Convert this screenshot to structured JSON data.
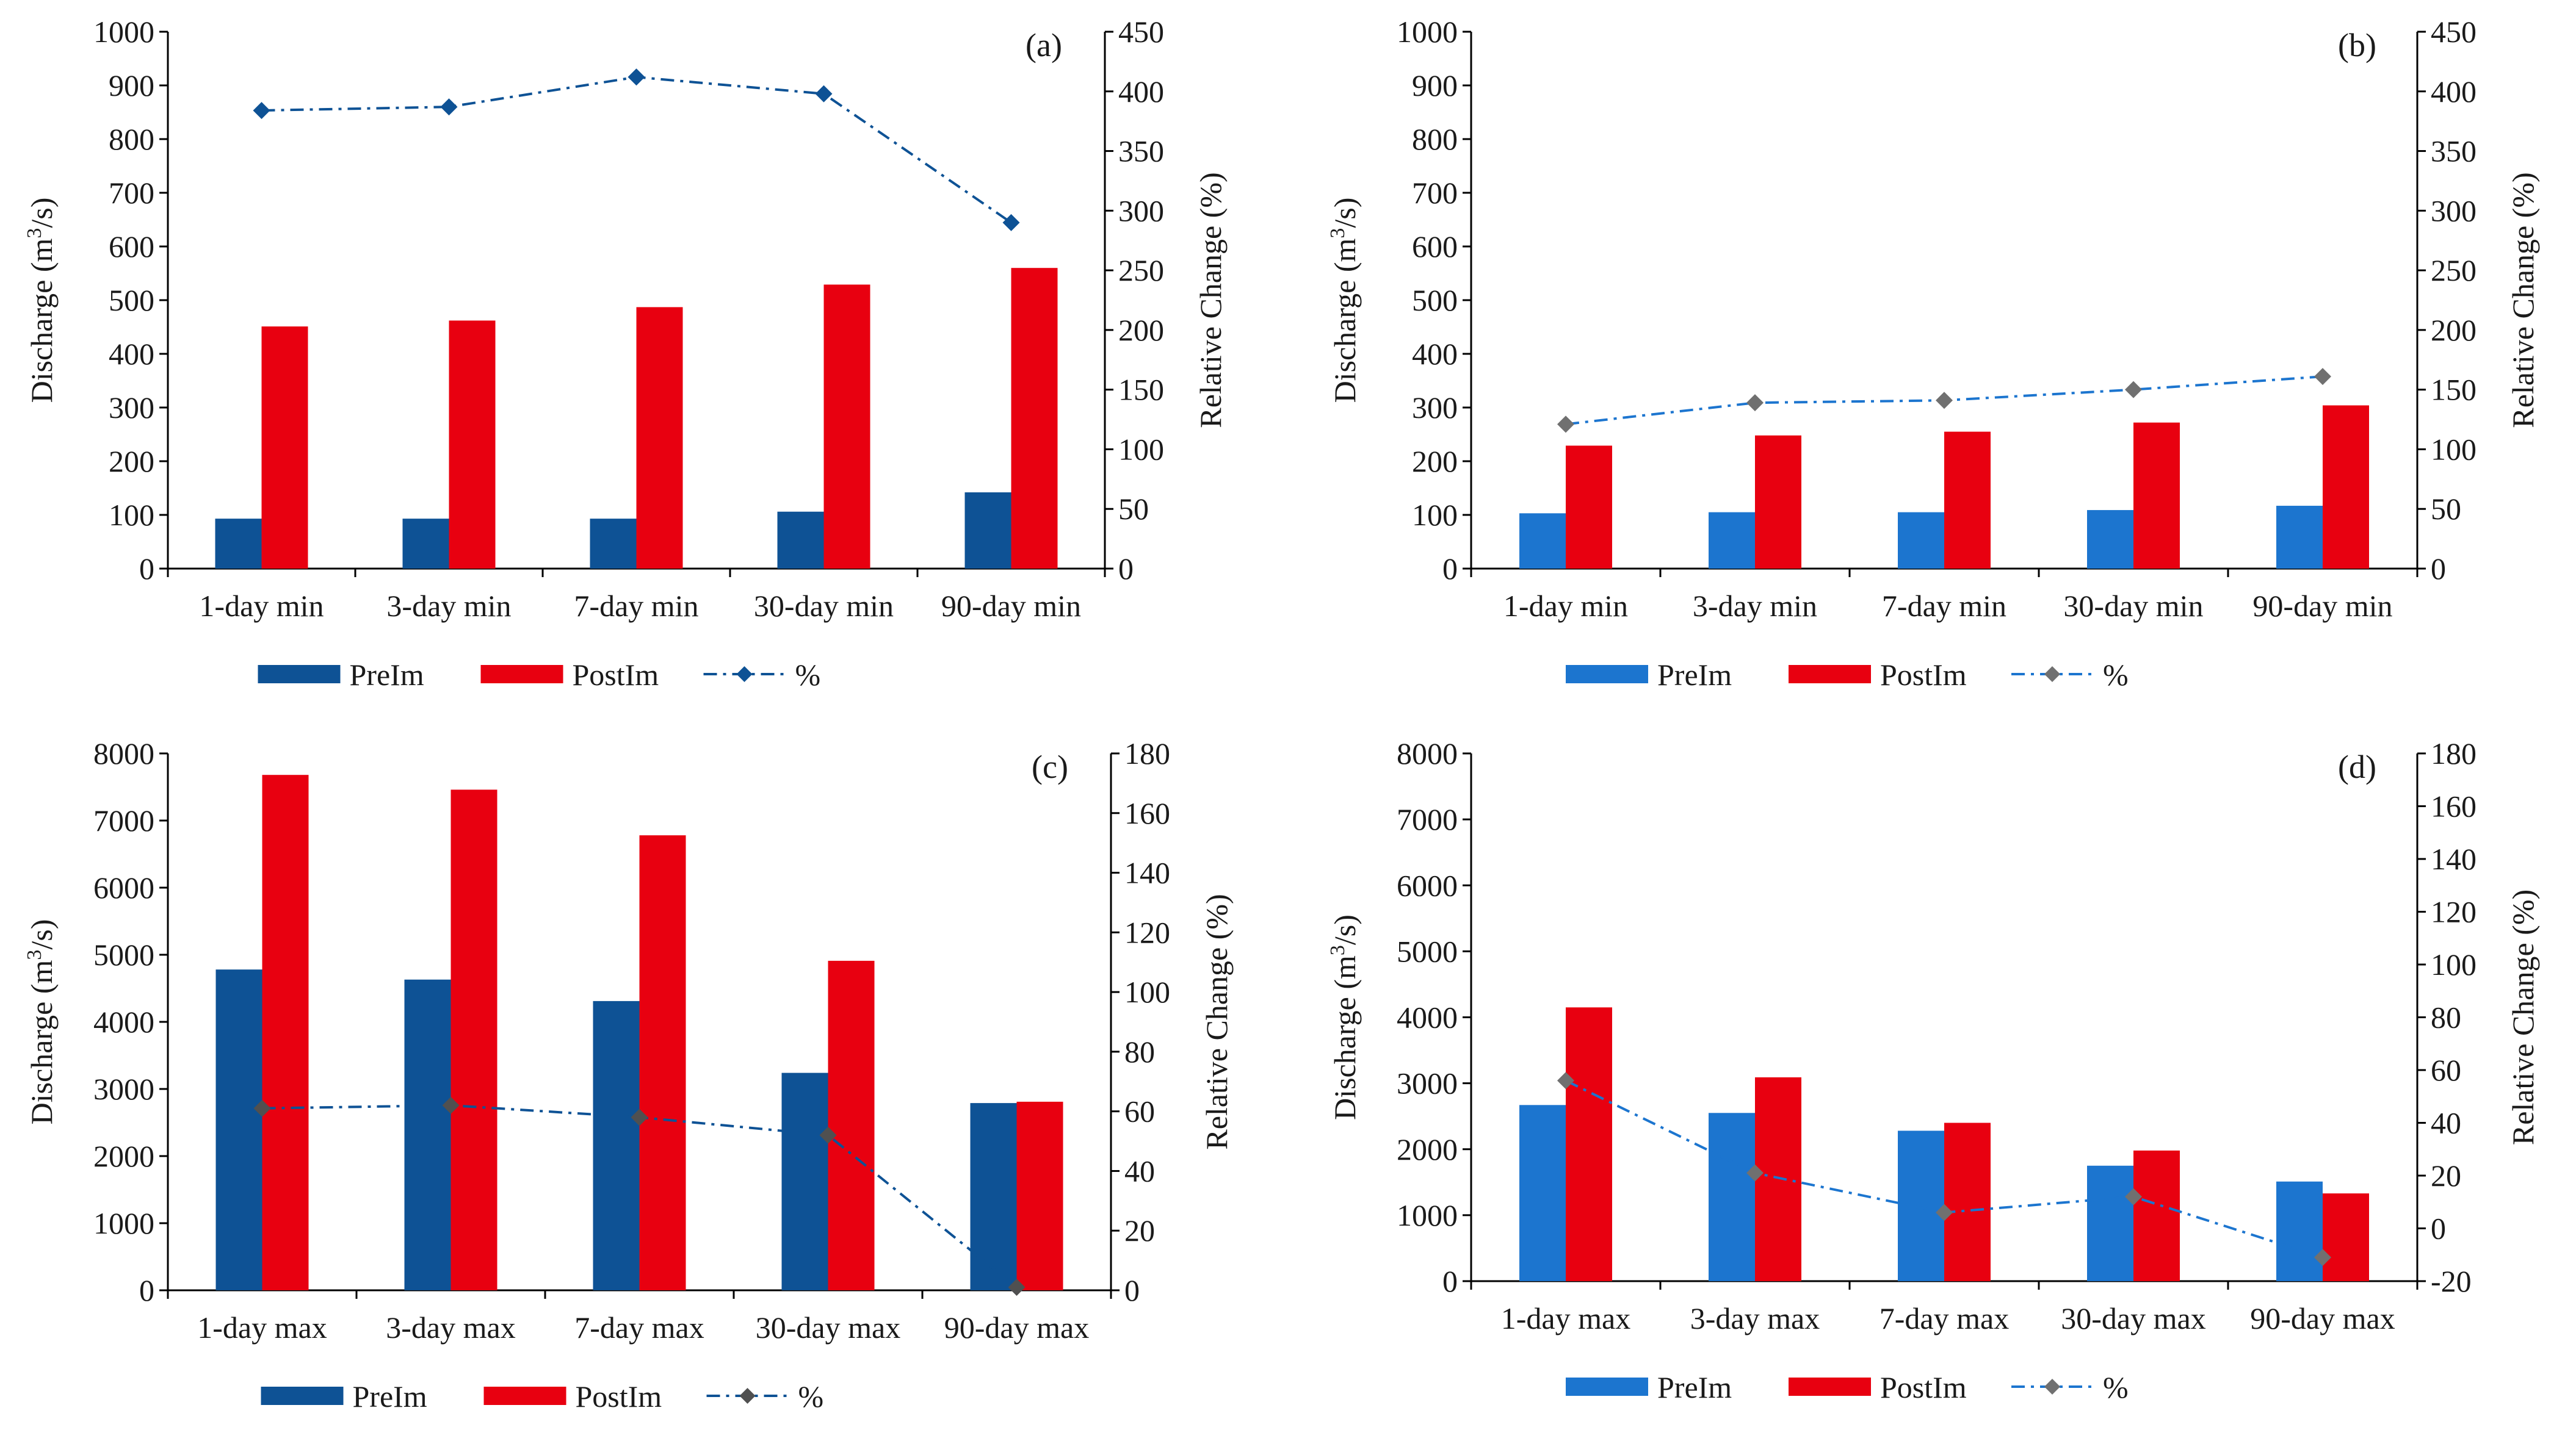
{
  "chart_data": [
    {
      "type": "bar",
      "panel_label": "(a)",
      "categories": [
        "1-day min",
        "3-day min",
        "7-day min",
        "30-day min",
        "90-day min"
      ],
      "series": [
        {
          "name": "PreIm",
          "kind": "bar",
          "axis": "left",
          "color": "#0e5295",
          "values": [
            93,
            93,
            93,
            106,
            142
          ]
        },
        {
          "name": "PostIm",
          "kind": "bar",
          "axis": "left",
          "color": "#e80010",
          "values": [
            451,
            462,
            487,
            529,
            560
          ]
        },
        {
          "name": "%",
          "kind": "line",
          "axis": "right",
          "color": "#0e5295",
          "marker_color": "#0e5295",
          "values": [
            384,
            387,
            412,
            398,
            290
          ]
        }
      ],
      "ylabel_prefix": "Discharge (m",
      "ylabel_sup": "3",
      "ylabel_suffix": "/s)",
      "y2label": "Relative Change (%)",
      "ylim": [
        0,
        1000
      ],
      "yticks": [
        0,
        100,
        200,
        300,
        400,
        500,
        600,
        700,
        800,
        900,
        1000
      ],
      "y2lim": [
        0,
        450
      ],
      "y2ticks": [
        0,
        50,
        100,
        150,
        200,
        250,
        300,
        350,
        400,
        450
      ],
      "legend": "bottom"
    },
    {
      "type": "bar",
      "panel_label": "(b)",
      "categories": [
        "1-day min",
        "3-day min",
        "7-day min",
        "30-day min",
        "90-day min"
      ],
      "series": [
        {
          "name": "PreIm",
          "kind": "bar",
          "axis": "left",
          "color": "#1c75cf",
          "values": [
            103,
            105,
            105,
            109,
            117
          ]
        },
        {
          "name": "PostIm",
          "kind": "bar",
          "axis": "left",
          "color": "#e80010",
          "values": [
            229,
            248,
            255,
            272,
            304
          ]
        },
        {
          "name": "%",
          "kind": "line",
          "axis": "right",
          "color": "#1c75cf",
          "marker_color": "#707070",
          "values": [
            121,
            139,
            141,
            150,
            161
          ]
        }
      ],
      "ylabel_prefix": "Discharge (m",
      "ylabel_sup": "3",
      "ylabel_suffix": "/s)",
      "y2label": "Relative Change (%)",
      "ylim": [
        0,
        1000
      ],
      "yticks": [
        0,
        100,
        200,
        300,
        400,
        500,
        600,
        700,
        800,
        900,
        1000
      ],
      "y2lim": [
        0,
        450
      ],
      "y2ticks": [
        0,
        50,
        100,
        150,
        200,
        250,
        300,
        350,
        400,
        450
      ],
      "legend": "bottom"
    },
    {
      "type": "bar",
      "panel_label": "(c)",
      "categories": [
        "1-day max",
        "3-day max",
        "7-day max",
        "30-day max",
        "90-day max"
      ],
      "series": [
        {
          "name": "PreIm",
          "kind": "bar",
          "axis": "left",
          "color": "#0e5295",
          "values": [
            4780,
            4630,
            4310,
            3240,
            2790
          ]
        },
        {
          "name": "PostIm",
          "kind": "bar",
          "axis": "left",
          "color": "#e80010",
          "values": [
            7680,
            7460,
            6780,
            4910,
            2810
          ]
        },
        {
          "name": "%",
          "kind": "line",
          "axis": "right",
          "color": "#0e5295",
          "marker_color": "#505050",
          "values": [
            61,
            62,
            58,
            52,
            1
          ]
        }
      ],
      "ylabel_prefix": "Discharge (m",
      "ylabel_sup": "3",
      "ylabel_suffix": "/s)",
      "y2label": "Relative Change (%)",
      "ylim": [
        0,
        8000
      ],
      "yticks": [
        0,
        1000,
        2000,
        3000,
        4000,
        5000,
        6000,
        7000,
        8000
      ],
      "y2lim": [
        0,
        180
      ],
      "y2ticks": [
        0,
        20,
        40,
        60,
        80,
        100,
        120,
        140,
        160,
        180
      ],
      "legend": "bottom"
    },
    {
      "type": "bar",
      "panel_label": "(d)",
      "categories": [
        "1-day max",
        "3-day max",
        "7-day max",
        "30-day max",
        "90-day max"
      ],
      "series": [
        {
          "name": "PreIm",
          "kind": "bar",
          "axis": "left",
          "color": "#1c75cf",
          "values": [
            2670,
            2550,
            2280,
            1750,
            1510
          ]
        },
        {
          "name": "PostIm",
          "kind": "bar",
          "axis": "left",
          "color": "#e80010",
          "values": [
            4150,
            3090,
            2400,
            1980,
            1330
          ]
        },
        {
          "name": "%",
          "kind": "line",
          "axis": "right",
          "color": "#1c75cf",
          "marker_color": "#707070",
          "values": [
            56,
            21,
            6,
            12,
            -11
          ]
        }
      ],
      "ylabel_prefix": "Discharge (m",
      "ylabel_sup": "3",
      "ylabel_suffix": "/s)",
      "y2label": "Relative Change (%)",
      "ylim": [
        0,
        8000
      ],
      "yticks": [
        0,
        1000,
        2000,
        3000,
        4000,
        5000,
        6000,
        7000,
        8000
      ],
      "y2lim": [
        -20,
        180
      ],
      "y2ticks": [
        -20,
        0,
        20,
        40,
        60,
        80,
        100,
        120,
        140,
        160,
        180
      ],
      "legend": "bottom"
    }
  ]
}
